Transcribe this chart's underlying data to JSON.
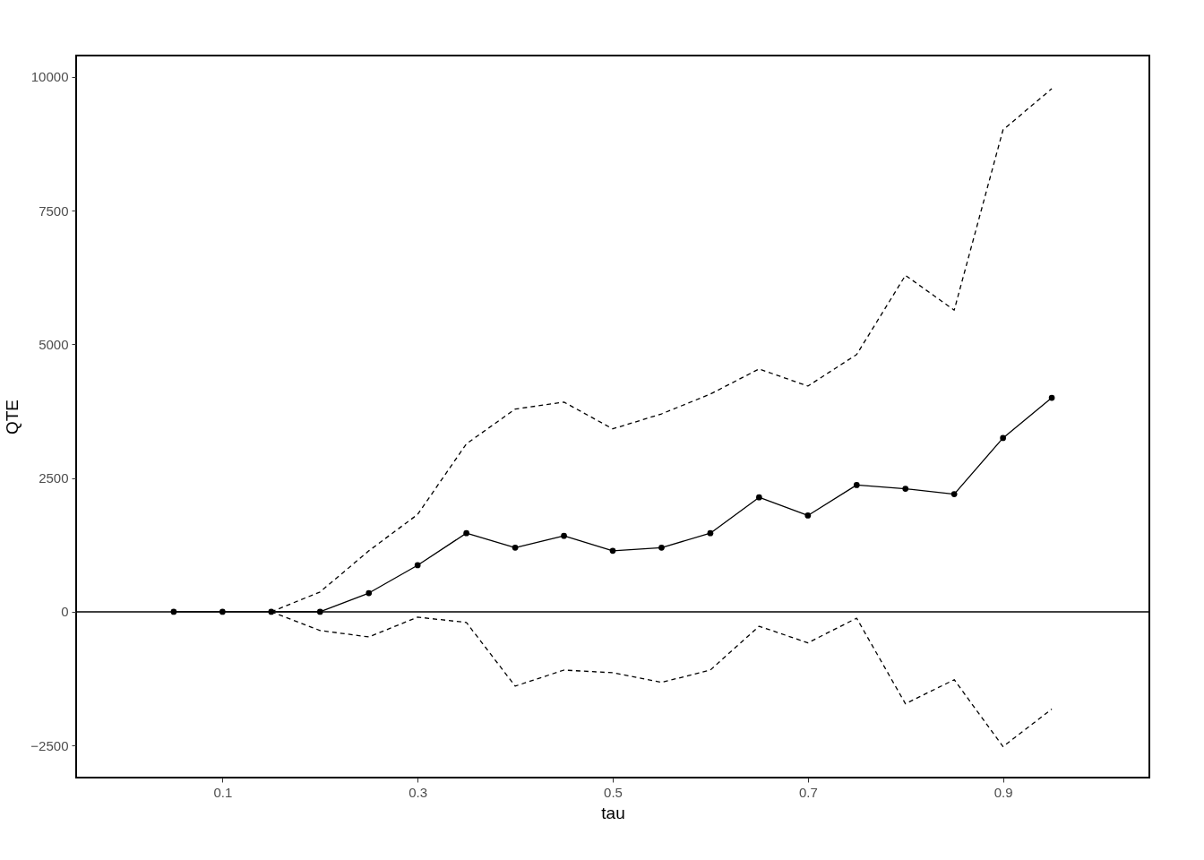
{
  "chart_data": {
    "type": "line",
    "xlabel": "tau",
    "ylabel": "QTE",
    "xlim": [
      -0.05,
      1.05
    ],
    "ylim": [
      -3100,
      10400
    ],
    "xticks": [
      0.1,
      0.3,
      0.5,
      0.7,
      0.9
    ],
    "yticks": [
      -2500,
      0,
      2500,
      5000,
      7500,
      10000
    ],
    "grid": false,
    "series": [
      {
        "color": "#000000",
        "marker": "circle",
        "line_style": "solid",
        "x": [
          0.05,
          0.1,
          0.15,
          0.2,
          0.25,
          0.3,
          0.35,
          0.4,
          0.45,
          0.5,
          0.55,
          0.6,
          0.65,
          0.7,
          0.75,
          0.8,
          0.85,
          0.9,
          0.95
        ],
        "values": [
          0,
          0,
          0,
          0,
          350,
          870,
          1470,
          1200,
          1420,
          1140,
          1200,
          1470,
          2140,
          1800,
          2370,
          2300,
          2200,
          3250,
          4000
        ]
      },
      {
        "color": "#000000",
        "marker": "none",
        "line_style": "dashed",
        "x": [
          0.15,
          0.2,
          0.25,
          0.3,
          0.35,
          0.4,
          0.45,
          0.5,
          0.55,
          0.6,
          0.65,
          0.7,
          0.75,
          0.8,
          0.85,
          0.9,
          0.95
        ],
        "values": [
          0,
          370,
          1140,
          1820,
          3140,
          3790,
          3920,
          3420,
          3700,
          4070,
          4540,
          4220,
          4810,
          6290,
          5640,
          9010,
          9780
        ]
      },
      {
        "color": "#000000",
        "marker": "none",
        "line_style": "dashed",
        "x": [
          0.15,
          0.2,
          0.25,
          0.3,
          0.35,
          0.4,
          0.45,
          0.5,
          0.55,
          0.6,
          0.65,
          0.7,
          0.75,
          0.8,
          0.85,
          0.9,
          0.95
        ],
        "values": [
          0,
          -350,
          -470,
          -100,
          -200,
          -1390,
          -1090,
          -1140,
          -1320,
          -1090,
          -270,
          -580,
          -120,
          -1720,
          -1270,
          -2520,
          -1820
        ]
      }
    ],
    "ref_lines": [
      {
        "axis": "y",
        "value": 0,
        "color": "#000000",
        "line_style": "solid"
      }
    ]
  }
}
